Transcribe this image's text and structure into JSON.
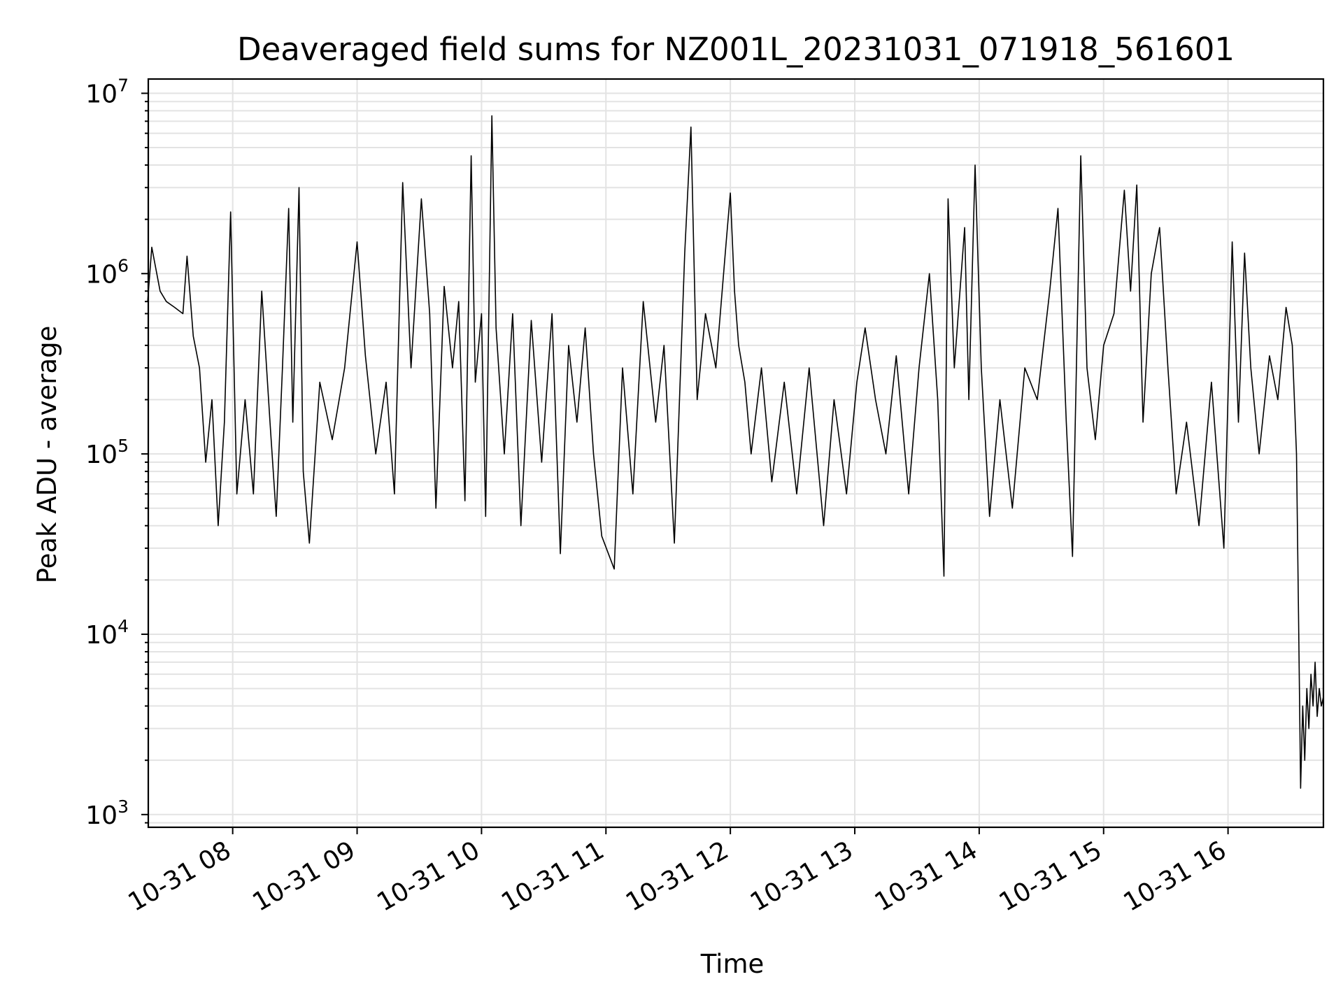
{
  "chart_data": {
    "type": "line",
    "title": "Deaveraged field sums for NZ001L_20231031_071918_561601",
    "xlabel": "Time",
    "ylabel": "Peak ADU - average",
    "yscale": "log",
    "ylim": [
      850,
      12000000
    ],
    "xlim": [
      "2023-10-31 07:19:18",
      "2023-10-31 16:46:00"
    ],
    "grid": true,
    "line_color": "#000000",
    "x_ticks": [
      "10-31 08",
      "10-31 09",
      "10-31 10",
      "10-31 11",
      "10-31 12",
      "10-31 13",
      "10-31 14",
      "10-31 15",
      "10-31 16"
    ],
    "y_ticks": [
      {
        "base": "10",
        "exp": "3",
        "value": 1000
      },
      {
        "base": "10",
        "exp": "4",
        "value": 10000
      },
      {
        "base": "10",
        "exp": "5",
        "value": 100000
      },
      {
        "base": "10",
        "exp": "6",
        "value": 1000000
      },
      {
        "base": "10",
        "exp": "7",
        "value": 10000000
      }
    ],
    "series": [
      {
        "points": [
          [
            "2023-10-31 07:19",
            700000
          ],
          [
            "2023-10-31 07:21",
            1400000
          ],
          [
            "2023-10-31 07:25",
            800000
          ],
          [
            "2023-10-31 07:28",
            700000
          ],
          [
            "2023-10-31 07:32",
            650000
          ],
          [
            "2023-10-31 07:36",
            600000
          ],
          [
            "2023-10-31 07:38",
            1250000
          ],
          [
            "2023-10-31 07:41",
            450000
          ],
          [
            "2023-10-31 07:44",
            300000
          ],
          [
            "2023-10-31 07:47",
            90000
          ],
          [
            "2023-10-31 07:50",
            200000
          ],
          [
            "2023-10-31 07:53",
            40000
          ],
          [
            "2023-10-31 07:56",
            150000
          ],
          [
            "2023-10-31 07:59",
            2200000
          ],
          [
            "2023-10-31 08:02",
            60000
          ],
          [
            "2023-10-31 08:06",
            200000
          ],
          [
            "2023-10-31 08:10",
            60000
          ],
          [
            "2023-10-31 08:14",
            800000
          ],
          [
            "2023-10-31 08:18",
            150000
          ],
          [
            "2023-10-31 08:21",
            45000
          ],
          [
            "2023-10-31 08:24",
            300000
          ],
          [
            "2023-10-31 08:27",
            2300000
          ],
          [
            "2023-10-31 08:29",
            150000
          ],
          [
            "2023-10-31 08:32",
            3000000
          ],
          [
            "2023-10-31 08:34",
            80000
          ],
          [
            "2023-10-31 08:37",
            32000
          ],
          [
            "2023-10-31 08:42",
            250000
          ],
          [
            "2023-10-31 08:48",
            120000
          ],
          [
            "2023-10-31 08:54",
            300000
          ],
          [
            "2023-10-31 09:00",
            1500000
          ],
          [
            "2023-10-31 09:04",
            350000
          ],
          [
            "2023-10-31 09:09",
            100000
          ],
          [
            "2023-10-31 09:14",
            250000
          ],
          [
            "2023-10-31 09:18",
            60000
          ],
          [
            "2023-10-31 09:22",
            3200000
          ],
          [
            "2023-10-31 09:26",
            300000
          ],
          [
            "2023-10-31 09:31",
            2600000
          ],
          [
            "2023-10-31 09:35",
            600000
          ],
          [
            "2023-10-31 09:38",
            50000
          ],
          [
            "2023-10-31 09:42",
            850000
          ],
          [
            "2023-10-31 09:46",
            300000
          ],
          [
            "2023-10-31 09:49",
            700000
          ],
          [
            "2023-10-31 09:52",
            55000
          ],
          [
            "2023-10-31 09:55",
            4500000
          ],
          [
            "2023-10-31 09:57",
            250000
          ],
          [
            "2023-10-31 10:00",
            600000
          ],
          [
            "2023-10-31 10:02",
            45000
          ],
          [
            "2023-10-31 10:05",
            7500000
          ],
          [
            "2023-10-31 10:07",
            500000
          ],
          [
            "2023-10-31 10:11",
            100000
          ],
          [
            "2023-10-31 10:15",
            600000
          ],
          [
            "2023-10-31 10:19",
            40000
          ],
          [
            "2023-10-31 10:24",
            550000
          ],
          [
            "2023-10-31 10:29",
            90000
          ],
          [
            "2023-10-31 10:34",
            600000
          ],
          [
            "2023-10-31 10:38",
            28000
          ],
          [
            "2023-10-31 10:42",
            400000
          ],
          [
            "2023-10-31 10:46",
            150000
          ],
          [
            "2023-10-31 10:50",
            500000
          ],
          [
            "2023-10-31 10:54",
            100000
          ],
          [
            "2023-10-31 10:58",
            35000
          ],
          [
            "2023-10-31 11:04",
            23000
          ],
          [
            "2023-10-31 11:08",
            300000
          ],
          [
            "2023-10-31 11:13",
            60000
          ],
          [
            "2023-10-31 11:18",
            700000
          ],
          [
            "2023-10-31 11:24",
            150000
          ],
          [
            "2023-10-31 11:28",
            400000
          ],
          [
            "2023-10-31 11:33",
            32000
          ],
          [
            "2023-10-31 11:38",
            1300000
          ],
          [
            "2023-10-31 11:41",
            6500000
          ],
          [
            "2023-10-31 11:44",
            200000
          ],
          [
            "2023-10-31 11:48",
            600000
          ],
          [
            "2023-10-31 11:53",
            300000
          ],
          [
            "2023-10-31 11:58",
            1500000
          ],
          [
            "2023-10-31 12:00",
            2800000
          ],
          [
            "2023-10-31 12:02",
            800000
          ],
          [
            "2023-10-31 12:04",
            400000
          ],
          [
            "2023-10-31 12:07",
            250000
          ],
          [
            "2023-10-31 12:10",
            100000
          ],
          [
            "2023-10-31 12:15",
            300000
          ],
          [
            "2023-10-31 12:20",
            70000
          ],
          [
            "2023-10-31 12:26",
            250000
          ],
          [
            "2023-10-31 12:32",
            60000
          ],
          [
            "2023-10-31 12:38",
            300000
          ],
          [
            "2023-10-31 12:45",
            40000
          ],
          [
            "2023-10-31 12:50",
            200000
          ],
          [
            "2023-10-31 12:56",
            60000
          ],
          [
            "2023-10-31 13:01",
            250000
          ],
          [
            "2023-10-31 13:05",
            500000
          ],
          [
            "2023-10-31 13:10",
            200000
          ],
          [
            "2023-10-31 13:15",
            100000
          ],
          [
            "2023-10-31 13:20",
            350000
          ],
          [
            "2023-10-31 13:26",
            60000
          ],
          [
            "2023-10-31 13:31",
            300000
          ],
          [
            "2023-10-31 13:36",
            1000000
          ],
          [
            "2023-10-31 13:40",
            200000
          ],
          [
            "2023-10-31 13:43",
            21000
          ],
          [
            "2023-10-31 13:45",
            2600000
          ],
          [
            "2023-10-31 13:48",
            300000
          ],
          [
            "2023-10-31 13:53",
            1800000
          ],
          [
            "2023-10-31 13:55",
            200000
          ],
          [
            "2023-10-31 13:58",
            4000000
          ],
          [
            "2023-10-31 14:01",
            300000
          ],
          [
            "2023-10-31 14:05",
            45000
          ],
          [
            "2023-10-31 14:10",
            200000
          ],
          [
            "2023-10-31 14:16",
            50000
          ],
          [
            "2023-10-31 14:22",
            300000
          ],
          [
            "2023-10-31 14:28",
            200000
          ],
          [
            "2023-10-31 14:34",
            800000
          ],
          [
            "2023-10-31 14:38",
            2300000
          ],
          [
            "2023-10-31 14:42",
            150000
          ],
          [
            "2023-10-31 14:45",
            27000
          ],
          [
            "2023-10-31 14:49",
            4500000
          ],
          [
            "2023-10-31 14:52",
            300000
          ],
          [
            "2023-10-31 14:56",
            120000
          ],
          [
            "2023-10-31 15:00",
            400000
          ],
          [
            "2023-10-31 15:05",
            600000
          ],
          [
            "2023-10-31 15:10",
            2900000
          ],
          [
            "2023-10-31 15:13",
            800000
          ],
          [
            "2023-10-31 15:16",
            3100000
          ],
          [
            "2023-10-31 15:19",
            150000
          ],
          [
            "2023-10-31 15:23",
            1000000
          ],
          [
            "2023-10-31 15:27",
            1800000
          ],
          [
            "2023-10-31 15:31",
            300000
          ],
          [
            "2023-10-31 15:35",
            60000
          ],
          [
            "2023-10-31 15:40",
            150000
          ],
          [
            "2023-10-31 15:46",
            40000
          ],
          [
            "2023-10-31 15:52",
            250000
          ],
          [
            "2023-10-31 15:58",
            30000
          ],
          [
            "2023-10-31 16:02",
            1500000
          ],
          [
            "2023-10-31 16:05",
            150000
          ],
          [
            "2023-10-31 16:08",
            1300000
          ],
          [
            "2023-10-31 16:11",
            300000
          ],
          [
            "2023-10-31 16:15",
            100000
          ],
          [
            "2023-10-31 16:20",
            350000
          ],
          [
            "2023-10-31 16:24",
            200000
          ],
          [
            "2023-10-31 16:28",
            650000
          ],
          [
            "2023-10-31 16:31",
            400000
          ],
          [
            "2023-10-31 16:33",
            100000
          ],
          [
            "2023-10-31 16:34",
            13000
          ],
          [
            "2023-10-31 16:35",
            1400
          ],
          [
            "2023-10-31 16:36",
            4000
          ],
          [
            "2023-10-31 16:37",
            2000
          ],
          [
            "2023-10-31 16:38",
            5000
          ],
          [
            "2023-10-31 16:39",
            3000
          ],
          [
            "2023-10-31 16:40",
            6000
          ],
          [
            "2023-10-31 16:41",
            4000
          ],
          [
            "2023-10-31 16:42",
            7000
          ],
          [
            "2023-10-31 16:43",
            3500
          ],
          [
            "2023-10-31 16:44",
            5000
          ],
          [
            "2023-10-31 16:45",
            4000
          ],
          [
            "2023-10-31 16:46",
            4500
          ]
        ]
      }
    ]
  }
}
